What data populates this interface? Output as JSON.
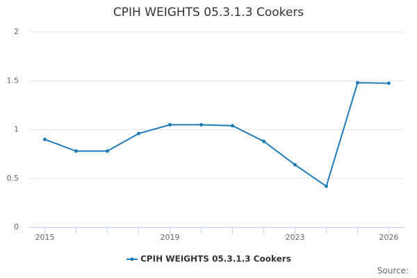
{
  "chart_data": {
    "type": "line",
    "title": "CPIH WEIGHTS 05.3.1.3 Cookers",
    "x": [
      2015,
      2016,
      2017,
      2018,
      2019,
      2020,
      2021,
      2022,
      2023,
      2024,
      2025,
      2026
    ],
    "series": [
      {
        "name": "CPIH WEIGHTS 05.3.1.3 Cookers",
        "color": "#1f7ab8",
        "values": [
          0.9,
          0.78,
          0.78,
          0.96,
          1.05,
          1.05,
          1.04,
          0.88,
          0.64,
          0.42,
          1.48,
          1.475
        ]
      }
    ],
    "xlim": [
      2014.5,
      2026.5
    ],
    "xticks": [
      2015,
      2019,
      2023,
      2026
    ],
    "ylim": [
      0,
      2
    ],
    "yticks": [
      0,
      0.5,
      1,
      1.5,
      2
    ],
    "grid": true,
    "legend": "bottom",
    "source": "Source:"
  }
}
